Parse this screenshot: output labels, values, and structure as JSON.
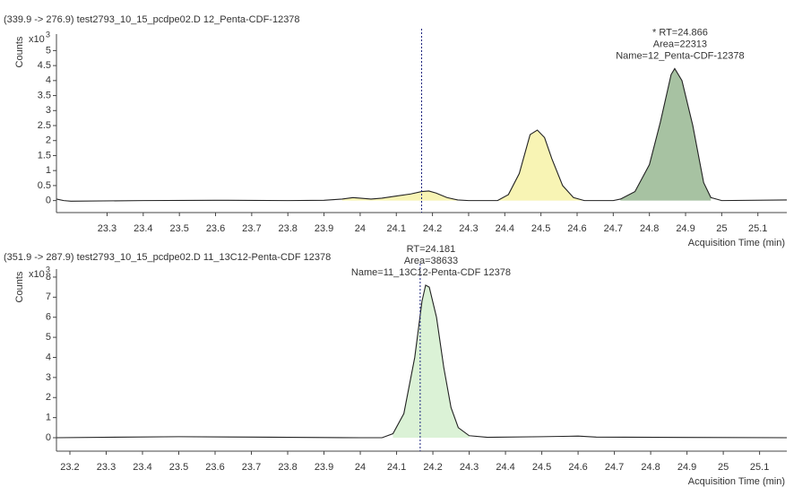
{
  "chart_data": [
    {
      "type": "area",
      "title": "(339.9 -> 276.9) test2793_10_15_pcdpe02.D 12_Penta-CDF-12378",
      "y_label": "Counts",
      "y_multiplier": "x10",
      "y_exponent": "3",
      "x_label": "Acquisition Time (min)",
      "xlim": [
        23.16,
        25.18
      ],
      "ylim": [
        -0.4,
        5.55
      ],
      "xticks": [
        23.3,
        23.4,
        23.5,
        23.6,
        23.7,
        23.8,
        23.9,
        24,
        24.1,
        24.2,
        24.3,
        24.4,
        24.5,
        24.6,
        24.7,
        24.8,
        24.9,
        25,
        25.1
      ],
      "yticks": [
        0,
        0.5,
        1,
        1.5,
        2,
        2.5,
        3,
        3.5,
        4,
        4.5,
        5
      ],
      "cursor_x": 24.17,
      "annotation": [
        "* RT=24.866",
        "Area=22313",
        "Name=12_Penta-CDF-12378"
      ],
      "line_color": "#222222",
      "x": [
        23.16,
        23.18,
        23.2,
        23.4,
        23.6,
        23.8,
        23.9,
        23.95,
        23.98,
        24.0,
        24.03,
        24.06,
        24.1,
        24.14,
        24.17,
        24.19,
        24.21,
        24.24,
        24.27,
        24.3,
        24.38,
        24.41,
        24.44,
        24.47,
        24.49,
        24.51,
        24.53,
        24.56,
        24.59,
        24.62,
        24.7,
        24.72,
        24.76,
        24.8,
        24.83,
        24.86,
        24.87,
        24.89,
        24.92,
        24.95,
        24.97,
        25.0,
        25.18
      ],
      "values": [
        0.05,
        0,
        -0.02,
        0,
        0.01,
        0,
        0.01,
        0.05,
        0.1,
        0.08,
        0.05,
        0.08,
        0.15,
        0.22,
        0.3,
        0.32,
        0.25,
        0.1,
        0.02,
        0,
        0,
        0.2,
        0.9,
        2.2,
        2.35,
        2.1,
        1.4,
        0.5,
        0.1,
        0,
        0,
        0.05,
        0.3,
        1.2,
        2.6,
        4.2,
        4.4,
        4.0,
        2.5,
        0.6,
        0.1,
        0,
        0.02
      ],
      "peaks": [
        {
          "xrange": [
            23.95,
            24.27
          ],
          "color": "#f8f4b4"
        },
        {
          "xrange": [
            24.38,
            24.62
          ],
          "color": "#f8f4b4"
        },
        {
          "xrange": [
            24.72,
            24.97
          ],
          "color": "#a7c2a2"
        }
      ]
    },
    {
      "type": "area",
      "title": "(351.9 -> 287.9) test2793_10_15_pcdpe02.D 11_13C12-Penta-CDF 12378",
      "y_label": "Counts",
      "y_multiplier": "x10",
      "y_exponent": "3",
      "x_label": "Acquisition Time (min)",
      "xlim": [
        23.163,
        25.175
      ],
      "ylim": [
        -0.67,
        8.4
      ],
      "xticks": [
        23.2,
        23.3,
        23.4,
        23.5,
        23.6,
        23.7,
        23.8,
        23.9,
        24,
        24.1,
        24.2,
        24.3,
        24.4,
        24.5,
        24.6,
        24.7,
        24.8,
        24.9,
        25,
        25.1
      ],
      "yticks": [
        0,
        1,
        2,
        3,
        4,
        5,
        6,
        7,
        8
      ],
      "cursor_x": 24.165,
      "annotation": [
        "RT=24.181",
        "Area=38633",
        "Name=11_13C12-Penta-CDF 12378"
      ],
      "line_color": "#222222",
      "x": [
        23.163,
        23.5,
        23.7,
        24.0,
        24.06,
        24.09,
        24.12,
        24.15,
        24.17,
        24.18,
        24.19,
        24.21,
        24.23,
        24.25,
        24.27,
        24.3,
        24.35,
        24.5,
        24.6,
        24.65,
        25.175
      ],
      "values": [
        0,
        0.05,
        0.03,
        0,
        0,
        0.2,
        1.2,
        4.0,
        6.8,
        7.6,
        7.5,
        6.0,
        3.5,
        1.5,
        0.5,
        0.1,
        0.02,
        0.05,
        0.08,
        0.03,
        0
      ],
      "peaks": [
        {
          "xrange": [
            24.07,
            24.3
          ],
          "color": "#dbf2d6"
        }
      ]
    }
  ]
}
